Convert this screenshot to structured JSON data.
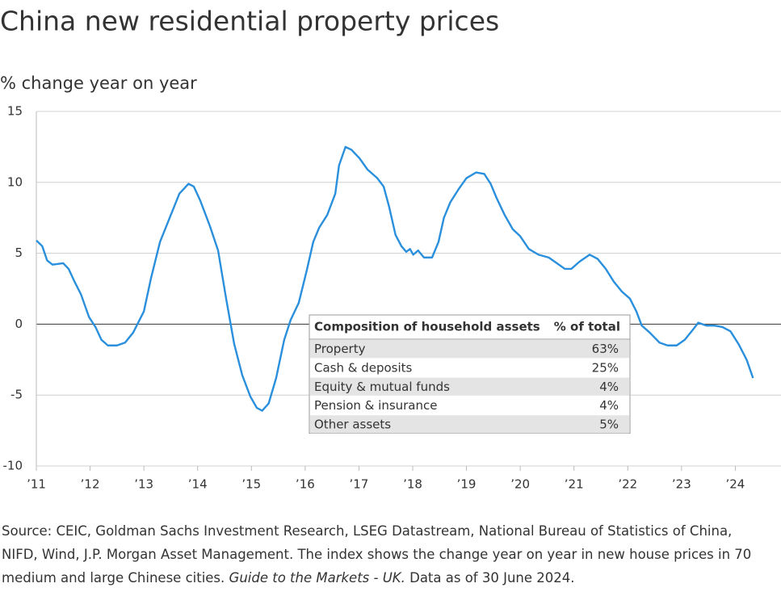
{
  "chart_data": {
    "type": "line",
    "title": "China new residential property prices",
    "subtitle": "% change year on year",
    "color": "#2a8fdc",
    "grid": true,
    "xlim": [
      2011,
      2024.85
    ],
    "ylim": [
      -10,
      15
    ],
    "yticks": [
      -10,
      -5,
      0,
      5,
      10,
      15
    ],
    "xticks": [
      {
        "value": 2011,
        "label": "’11"
      },
      {
        "value": 2012,
        "label": "’12"
      },
      {
        "value": 2013,
        "label": "’13"
      },
      {
        "value": 2014,
        "label": "’14"
      },
      {
        "value": 2015,
        "label": "’15"
      },
      {
        "value": 2016,
        "label": "’16"
      },
      {
        "value": 2017,
        "label": "’17"
      },
      {
        "value": 2018,
        "label": "’18"
      },
      {
        "value": 2019,
        "label": "’19"
      },
      {
        "value": 2020,
        "label": "’20"
      },
      {
        "value": 2021,
        "label": "’21"
      },
      {
        "value": 2022,
        "label": "’22"
      },
      {
        "value": 2023,
        "label": "’23"
      },
      {
        "value": 2024,
        "label": "’24"
      }
    ],
    "x": [
      2011.0,
      2011.11,
      2011.2,
      2011.3,
      2011.5,
      2011.6,
      2011.71,
      2011.83,
      2011.98,
      2012.1,
      2012.21,
      2012.33,
      2012.5,
      2012.65,
      2012.8,
      2013.0,
      2013.13,
      2013.3,
      2013.48,
      2013.66,
      2013.83,
      2013.93,
      2014.05,
      2014.23,
      2014.38,
      2014.53,
      2014.68,
      2014.83,
      2014.98,
      2015.1,
      2015.2,
      2015.32,
      2015.46,
      2015.61,
      2015.73,
      2015.88,
      2016.03,
      2016.15,
      2016.26,
      2016.41,
      2016.56,
      2016.63,
      2016.75,
      2016.86,
      2017.01,
      2017.16,
      2017.34,
      2017.46,
      2017.56,
      2017.68,
      2017.79,
      2017.88,
      2017.95,
      2018.01,
      2018.1,
      2018.21,
      2018.36,
      2018.48,
      2018.58,
      2018.7,
      2018.85,
      2019.0,
      2019.18,
      2019.33,
      2019.45,
      2019.56,
      2019.71,
      2019.86,
      2020.0,
      2020.16,
      2020.34,
      2020.53,
      2020.68,
      2020.83,
      2020.95,
      2021.1,
      2021.29,
      2021.44,
      2021.59,
      2021.74,
      2021.89,
      2022.04,
      2022.16,
      2022.26,
      2022.41,
      2022.59,
      2022.74,
      2022.91,
      2023.06,
      2023.21,
      2023.31,
      2023.46,
      2023.61,
      2023.76,
      2023.91,
      2024.06,
      2024.21,
      2024.33
    ],
    "values": [
      5.9,
      5.5,
      4.5,
      4.2,
      4.3,
      3.9,
      3.0,
      2.1,
      0.5,
      -0.2,
      -1.1,
      -1.5,
      -1.5,
      -1.3,
      -0.6,
      0.9,
      3.2,
      5.8,
      7.5,
      9.2,
      9.9,
      9.7,
      8.7,
      6.9,
      5.2,
      1.8,
      -1.4,
      -3.6,
      -5.1,
      -5.9,
      -6.1,
      -5.6,
      -3.8,
      -1.1,
      0.3,
      1.5,
      3.8,
      5.8,
      6.8,
      7.7,
      9.2,
      11.2,
      12.5,
      12.3,
      11.7,
      10.9,
      10.3,
      9.7,
      8.3,
      6.3,
      5.5,
      5.1,
      5.3,
      4.9,
      5.2,
      4.7,
      4.7,
      5.8,
      7.5,
      8.6,
      9.5,
      10.3,
      10.7,
      10.6,
      9.9,
      8.9,
      7.7,
      6.7,
      6.2,
      5.3,
      4.9,
      4.7,
      4.3,
      3.9,
      3.9,
      4.4,
      4.9,
      4.6,
      3.9,
      3.0,
      2.3,
      1.8,
      0.9,
      -0.1,
      -0.6,
      -1.3,
      -1.5,
      -1.5,
      -1.1,
      -0.4,
      0.1,
      -0.1,
      -0.1,
      -0.2,
      -0.5,
      -1.4,
      -2.5,
      -3.8
    ],
    "table": {
      "header": [
        "Composition of household assets",
        "% of total"
      ],
      "rows": [
        [
          "Property",
          "63%"
        ],
        [
          "Cash & deposits",
          "25%"
        ],
        [
          "Equity & mutual funds",
          "4%"
        ],
        [
          "Pension & insurance",
          "4%"
        ],
        [
          "Other assets",
          "5%"
        ]
      ]
    },
    "source": [
      "Source: CEIC, Goldman Sachs Investment Research, LSEG Datastream, National Bureau of Statistics of China, NIFD, Wind, J.P. Morgan Asset Management. The index shows the change year on year in new house prices in 70 medium and large Chinese cities.",
      "Guide to the Markets - UK.",
      "Data as of 30 June 2024."
    ]
  }
}
